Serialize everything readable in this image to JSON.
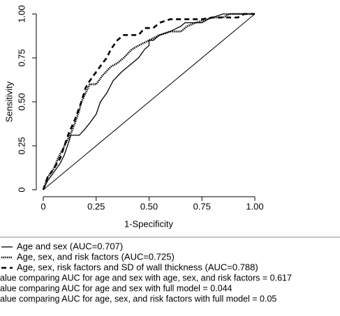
{
  "chart_data": {
    "type": "line",
    "xlabel": "1-Specificity",
    "ylabel": "Sensitivity",
    "xlim": [
      0,
      1
    ],
    "ylim": [
      0,
      1
    ],
    "xticks": [
      0,
      0.25,
      {
        "value": 0.5,
        "label": "0.50"
      },
      0.75,
      {
        "value": 1,
        "label": "1.00"
      }
    ],
    "yticks": [
      0,
      0.25,
      {
        "value": 0.5,
        "label": "0.50"
      },
      0.75,
      {
        "value": 1,
        "label": "1.00"
      }
    ],
    "reference_diagonal": true,
    "legend": "bottom",
    "series": [
      {
        "name": "Age and sex (AUC=0.707)",
        "color": "#000000",
        "linestyle": "solid",
        "x": [
          0,
          0.02,
          0.05,
          0.08,
          0.1,
          0.12,
          0.13,
          0.17,
          0.2,
          0.22,
          0.25,
          0.27,
          0.3,
          0.33,
          0.37,
          0.4,
          0.45,
          0.48,
          0.5,
          0.5,
          0.52,
          0.55,
          0.6,
          0.65,
          0.67,
          0.75,
          0.78,
          0.8,
          0.85,
          1
        ],
        "y": [
          0,
          0.05,
          0.1,
          0.15,
          0.2,
          0.27,
          0.31,
          0.31,
          0.35,
          0.38,
          0.43,
          0.5,
          0.55,
          0.62,
          0.67,
          0.7,
          0.75,
          0.8,
          0.82,
          0.85,
          0.85,
          0.88,
          0.9,
          0.93,
          0.95,
          0.95,
          0.97,
          0.98,
          1,
          1
        ]
      },
      {
        "name": "Age, sex, and risk factors (AUC=0.725)",
        "color": "#000000",
        "linestyle": "dotted",
        "x": [
          0,
          0.02,
          0.05,
          0.07,
          0.1,
          0.13,
          0.15,
          0.17,
          0.18,
          0.2,
          0.22,
          0.25,
          0.28,
          0.32,
          0.35,
          0.38,
          0.42,
          0.45,
          0.5,
          0.55,
          0.6,
          0.65,
          0.68,
          0.72,
          0.8,
          0.85,
          0.88,
          1
        ],
        "y": [
          0,
          0.07,
          0.12,
          0.18,
          0.25,
          0.32,
          0.38,
          0.45,
          0.5,
          0.55,
          0.6,
          0.6,
          0.65,
          0.7,
          0.72,
          0.75,
          0.8,
          0.82,
          0.85,
          0.88,
          0.9,
          0.9,
          0.93,
          0.95,
          0.98,
          0.98,
          1,
          1
        ]
      },
      {
        "name": "Age, sex, risk factors and SD of wall thickness (AUC=0.788)",
        "color": "#000000",
        "linestyle": "dashed",
        "x": [
          0,
          0.02,
          0.05,
          0.08,
          0.1,
          0.12,
          0.15,
          0.18,
          0.2,
          0.22,
          0.25,
          0.28,
          0.3,
          0.32,
          0.35,
          0.38,
          0.45,
          0.48,
          0.52,
          0.55,
          0.6,
          0.75,
          0.8,
          0.92,
          0.95,
          1
        ],
        "y": [
          0,
          0.07,
          0.12,
          0.18,
          0.25,
          0.32,
          0.4,
          0.5,
          0.58,
          0.62,
          0.67,
          0.72,
          0.75,
          0.8,
          0.85,
          0.88,
          0.88,
          0.92,
          0.92,
          0.95,
          0.97,
          0.97,
          0.98,
          0.98,
          1,
          1
        ]
      }
    ],
    "notes": [
      "alue comparing AUC for age and sex with age, sex, and risk factors = 0.617",
      "alue comparing AUC for age and sex with full model = 0.044",
      "alue comparing AUC for age, sex, and risk factors with full model = 0.05"
    ]
  }
}
